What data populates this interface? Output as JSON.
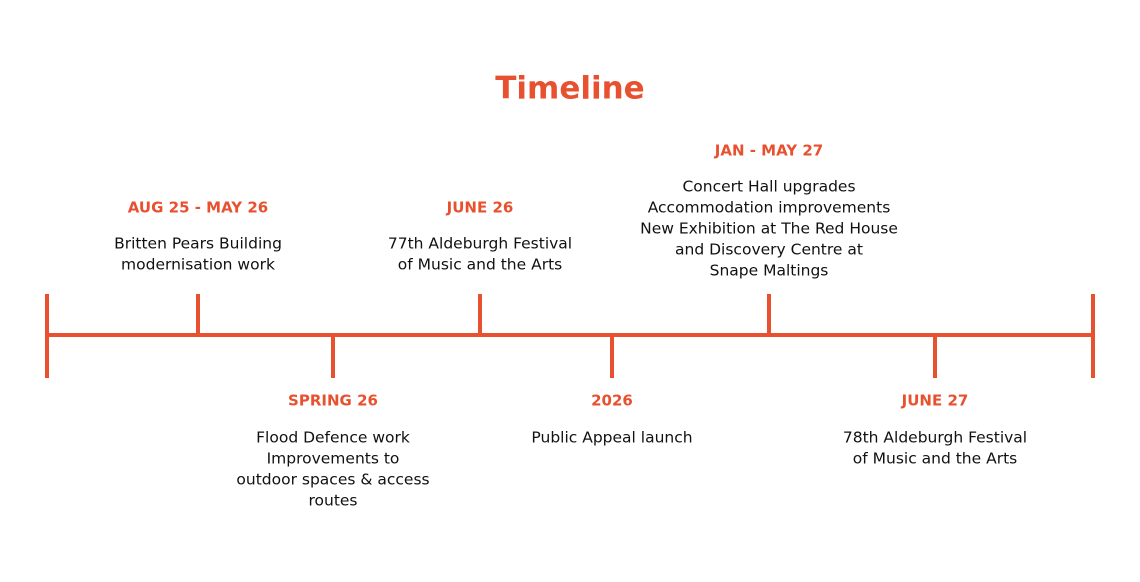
{
  "title": "Timeline",
  "events": [
    {
      "date": "AUG 25 - MAY 26",
      "lines": [
        "Britten Pears Building",
        "modernisation work"
      ]
    },
    {
      "date": "SPRING 26",
      "lines": [
        "Flood Defence work",
        "Improvements to",
        "outdoor spaces & access",
        "routes"
      ]
    },
    {
      "date": "JUNE 26",
      "lines": [
        "77th Aldeburgh Festival",
        "of Music and the Arts"
      ]
    },
    {
      "date": "2026",
      "lines": [
        "Public Appeal launch"
      ]
    },
    {
      "date": "JAN - MAY 27",
      "lines": [
        "Concert Hall upgrades",
        "Accommodation improvements",
        "New Exhibition at The Red House",
        "and Discovery Centre at",
        "Snape Maltings"
      ]
    },
    {
      "date": "JUNE 27",
      "lines": [
        "78th Aldeburgh Festival",
        "of Music and the Arts"
      ]
    }
  ]
}
